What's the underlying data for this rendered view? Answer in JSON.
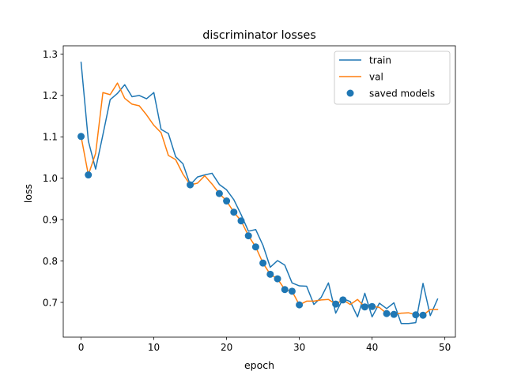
{
  "chart_data": {
    "type": "line",
    "title": "discriminator losses",
    "xlabel": "epoch",
    "ylabel": "loss",
    "xlim": [
      -2.45,
      51.45
    ],
    "ylim": [
      0.616,
      1.32
    ],
    "xticks": [
      0,
      10,
      20,
      30,
      40,
      50
    ],
    "xtick_labels": [
      "0",
      "10",
      "20",
      "30",
      "40",
      "50"
    ],
    "yticks": [
      0.7,
      0.8,
      0.9,
      1.0,
      1.1,
      1.2,
      1.3
    ],
    "ytick_labels": [
      "0.7",
      "0.8",
      "0.9",
      "1.0",
      "1.1",
      "1.2",
      "1.3"
    ],
    "grid": false,
    "legend_position": "top-right",
    "series": [
      {
        "name": "train",
        "kind": "line",
        "color": "#1f77b4",
        "x": [
          0,
          1,
          2,
          3,
          4,
          5,
          6,
          7,
          8,
          9,
          10,
          11,
          12,
          13,
          14,
          15,
          16,
          17,
          18,
          19,
          20,
          21,
          22,
          23,
          24,
          25,
          26,
          27,
          28,
          29,
          30,
          31,
          32,
          33,
          34,
          35,
          36,
          37,
          38,
          39,
          40,
          41,
          42,
          43,
          44,
          45,
          46,
          47,
          48,
          49
        ],
        "y": [
          1.28,
          1.09,
          1.022,
          1.105,
          1.19,
          1.205,
          1.226,
          1.197,
          1.2,
          1.192,
          1.207,
          1.118,
          1.108,
          1.052,
          1.035,
          0.984,
          1.003,
          1.008,
          1.012,
          0.985,
          0.972,
          0.948,
          0.912,
          0.872,
          0.876,
          0.838,
          0.785,
          0.801,
          0.79,
          0.747,
          0.74,
          0.739,
          0.695,
          0.712,
          0.747,
          0.674,
          0.709,
          0.702,
          0.665,
          0.722,
          0.665,
          0.698,
          0.685,
          0.699,
          0.649,
          0.649,
          0.651,
          0.746,
          0.668,
          0.708
        ]
      },
      {
        "name": "val",
        "kind": "line",
        "color": "#ff7f0e",
        "x": [
          0,
          1,
          2,
          3,
          4,
          5,
          6,
          7,
          8,
          9,
          10,
          11,
          12,
          13,
          14,
          15,
          16,
          17,
          18,
          19,
          20,
          21,
          22,
          23,
          24,
          25,
          26,
          27,
          28,
          29,
          30,
          31,
          32,
          33,
          34,
          35,
          36,
          37,
          38,
          39,
          40,
          41,
          42,
          43,
          44,
          45,
          46,
          47,
          48,
          49
        ],
        "y": [
          1.101,
          1.008,
          1.06,
          1.207,
          1.202,
          1.23,
          1.193,
          1.179,
          1.175,
          1.153,
          1.128,
          1.11,
          1.055,
          1.045,
          1.01,
          0.984,
          0.988,
          1.006,
          0.986,
          0.963,
          0.945,
          0.918,
          0.897,
          0.861,
          0.834,
          0.795,
          0.768,
          0.757,
          0.731,
          0.727,
          0.694,
          0.703,
          0.703,
          0.706,
          0.707,
          0.696,
          0.706,
          0.695,
          0.707,
          0.689,
          0.69,
          0.688,
          0.673,
          0.671,
          0.674,
          0.675,
          0.67,
          0.669,
          0.683,
          0.683
        ]
      },
      {
        "name": "saved models",
        "kind": "scatter",
        "color": "#1f77b4",
        "x": [
          0,
          1,
          15,
          19,
          20,
          21,
          22,
          23,
          24,
          25,
          26,
          27,
          28,
          29,
          30,
          35,
          36,
          39,
          40,
          42,
          43,
          46,
          47
        ],
        "y": [
          1.101,
          1.008,
          0.984,
          0.963,
          0.945,
          0.918,
          0.897,
          0.861,
          0.834,
          0.795,
          0.768,
          0.757,
          0.731,
          0.727,
          0.694,
          0.696,
          0.706,
          0.689,
          0.69,
          0.673,
          0.671,
          0.67,
          0.669
        ]
      }
    ]
  }
}
